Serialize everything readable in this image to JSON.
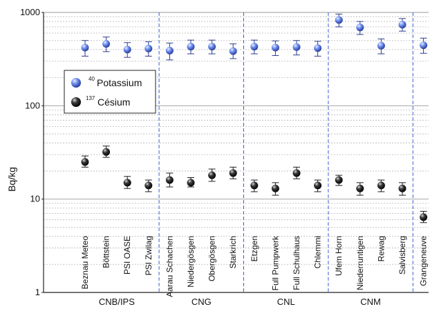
{
  "chart_data": {
    "type": "scatter",
    "ylabel": "Bq/kg",
    "yscale": "log",
    "ylim": [
      1,
      1000
    ],
    "yticks": [
      "1",
      "10",
      "100",
      "1000"
    ],
    "grid": true,
    "legend_position": "upper-left",
    "categories": [
      "Beznau Meteo",
      "Böttstein",
      "PSI OASE",
      "PSI Zwilag",
      "Aarau Schachen",
      "Niedergösgen",
      "Obergösgen",
      "Starkrich",
      "Etzgen",
      "Full Pumpwerk",
      "Full Schulhaus",
      "Chlemmi",
      "Ufem Horn",
      "Niederruntigen",
      "Rewag",
      "Salvisberg",
      "Grangeneuve"
    ],
    "groups": [
      {
        "name": "CNB/IPS",
        "span": [
          0,
          3
        ]
      },
      {
        "name": "CNG",
        "span": [
          4,
          7
        ]
      },
      {
        "name": "CNL",
        "span": [
          8,
          11
        ]
      },
      {
        "name": "CNM",
        "span": [
          12,
          15
        ]
      },
      {
        "name": "",
        "span": [
          16,
          16
        ]
      }
    ],
    "series": [
      {
        "name": "Potassium",
        "isotope_mass": "40",
        "color": "#4a6fd8",
        "values": [
          420,
          460,
          400,
          410,
          390,
          430,
          430,
          385,
          430,
          420,
          425,
          415,
          830,
          690,
          440,
          740,
          445
        ],
        "err_low": [
          340,
          380,
          330,
          340,
          310,
          360,
          360,
          320,
          360,
          345,
          350,
          340,
          700,
          580,
          360,
          630,
          365
        ],
        "err_high": [
          500,
          545,
          475,
          485,
          470,
          505,
          505,
          460,
          505,
          495,
          500,
          490,
          960,
          800,
          520,
          860,
          530
        ]
      },
      {
        "name": "Césium",
        "isotope_mass": "137",
        "color": "#1e1e1e",
        "values": [
          25,
          32,
          15,
          14,
          16,
          15,
          18,
          19,
          14,
          13,
          19,
          14,
          16,
          13,
          14,
          13,
          6.4
        ],
        "err_low": [
          22,
          28,
          13,
          12,
          13.5,
          13.5,
          15.5,
          16.5,
          12,
          11,
          16.5,
          12,
          14,
          11,
          12,
          11,
          5.6
        ],
        "err_high": [
          29,
          37,
          17.5,
          16,
          19,
          17,
          21,
          22,
          16,
          15,
          22,
          16,
          18,
          15,
          16,
          15,
          7.4
        ]
      }
    ]
  }
}
